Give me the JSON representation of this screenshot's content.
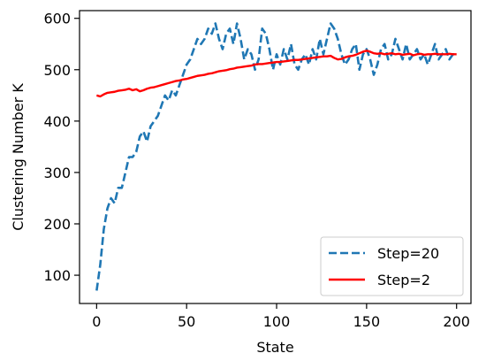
{
  "chart_data": {
    "type": "line",
    "title": "",
    "xlabel": "State",
    "ylabel": "Clustering Number K",
    "xlim": [
      -9.5,
      208
    ],
    "ylim": [
      45,
      615
    ],
    "xticks": [
      0,
      50,
      100,
      150,
      200
    ],
    "yticks": [
      100,
      200,
      300,
      400,
      500,
      600
    ],
    "grid": false,
    "legend_position": "bottom-right",
    "series": [
      {
        "name": "Step=20",
        "color": "#1f77b4",
        "style": "dashed",
        "x": [
          0,
          2,
          4,
          6,
          8,
          10,
          12,
          14,
          16,
          18,
          20,
          22,
          24,
          26,
          28,
          30,
          32,
          34,
          36,
          38,
          40,
          42,
          44,
          46,
          48,
          50,
          52,
          54,
          56,
          58,
          60,
          62,
          64,
          66,
          68,
          70,
          72,
          74,
          76,
          78,
          80,
          82,
          84,
          86,
          88,
          90,
          92,
          94,
          96,
          98,
          100,
          102,
          104,
          106,
          108,
          110,
          112,
          114,
          116,
          118,
          120,
          122,
          124,
          126,
          128,
          130,
          132,
          134,
          136,
          138,
          140,
          142,
          144,
          146,
          148,
          150,
          152,
          154,
          156,
          158,
          160,
          162,
          164,
          166,
          168,
          170,
          172,
          174,
          176,
          178,
          180,
          182,
          184,
          186,
          188,
          190,
          192,
          194,
          196,
          198,
          200
        ],
        "values": [
          70,
          120,
          190,
          230,
          250,
          240,
          270,
          270,
          300,
          330,
          330,
          340,
          370,
          380,
          360,
          390,
          400,
          410,
          430,
          450,
          440,
          460,
          450,
          470,
          490,
          510,
          520,
          540,
          560,
          550,
          560,
          580,
          570,
          590,
          560,
          540,
          570,
          580,
          550,
          590,
          560,
          520,
          540,
          530,
          500,
          520,
          580,
          570,
          540,
          500,
          530,
          510,
          540,
          520,
          550,
          510,
          500,
          520,
          530,
          510,
          540,
          520,
          560,
          530,
          560,
          590,
          580,
          560,
          530,
          510,
          520,
          540,
          550,
          500,
          530,
          540,
          520,
          490,
          510,
          540,
          550,
          520,
          530,
          560,
          540,
          520,
          550,
          520,
          530,
          540,
          520,
          530,
          510,
          530,
          550,
          520,
          530,
          540,
          520,
          530,
          530
        ]
      },
      {
        "name": "Step=2",
        "color": "#ff0000",
        "style": "solid",
        "x": [
          0,
          2,
          4,
          6,
          8,
          10,
          12,
          14,
          16,
          18,
          20,
          22,
          24,
          26,
          28,
          30,
          32,
          34,
          36,
          38,
          40,
          42,
          44,
          46,
          48,
          50,
          52,
          54,
          56,
          58,
          60,
          62,
          64,
          66,
          68,
          70,
          72,
          74,
          76,
          78,
          80,
          82,
          84,
          86,
          88,
          90,
          92,
          94,
          96,
          98,
          100,
          102,
          104,
          106,
          108,
          110,
          112,
          114,
          116,
          118,
          120,
          122,
          124,
          126,
          128,
          130,
          132,
          134,
          136,
          138,
          140,
          142,
          144,
          146,
          148,
          150,
          152,
          154,
          156,
          158,
          160,
          162,
          164,
          166,
          168,
          170,
          172,
          174,
          176,
          178,
          180,
          182,
          184,
          186,
          188,
          190,
          192,
          194,
          196,
          198,
          200
        ],
        "values": [
          450,
          448,
          452,
          455,
          456,
          457,
          459,
          460,
          461,
          463,
          460,
          462,
          458,
          460,
          463,
          465,
          466,
          468,
          470,
          472,
          474,
          476,
          478,
          479,
          481,
          482,
          484,
          486,
          488,
          489,
          490,
          492,
          493,
          495,
          497,
          498,
          499,
          501,
          502,
          504,
          505,
          506,
          507,
          508,
          510,
          511,
          511,
          512,
          513,
          514,
          515,
          515,
          516,
          517,
          518,
          519,
          519,
          520,
          521,
          522,
          523,
          524,
          525,
          526,
          526,
          527,
          523,
          520,
          521,
          524,
          526,
          527,
          529,
          532,
          535,
          537,
          535,
          532,
          531,
          532,
          530,
          531,
          532,
          530,
          531,
          529,
          530,
          531,
          528,
          530,
          531,
          529,
          530,
          530,
          531,
          530,
          530,
          530,
          531,
          530,
          530
        ]
      }
    ]
  }
}
